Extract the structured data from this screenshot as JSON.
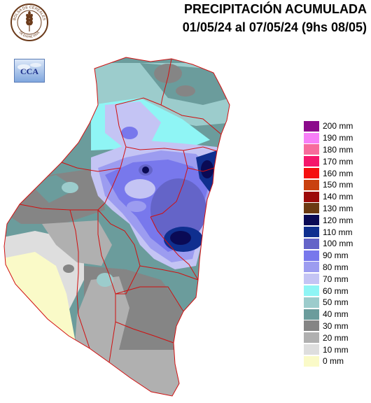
{
  "header": {
    "title_line1": "PRECIPITACIÓN ACUMULADA",
    "title_line2": "01/05/24 al 07/05/24 (9hs 08/05)"
  },
  "logos": {
    "seal_text_top": "BOLSA DE CEREALES",
    "seal_text_bottom": "DE ENTRE RIOS",
    "cca_text": "CCA"
  },
  "legend": {
    "items": [
      {
        "label": "200 mm",
        "color": "#8b0a8b"
      },
      {
        "label": "190 mm",
        "color": "#f77ff7"
      },
      {
        "label": "180 mm",
        "color": "#f76b9c"
      },
      {
        "label": "170 mm",
        "color": "#f5166b"
      },
      {
        "label": "160 mm",
        "color": "#f50f0f"
      },
      {
        "label": "150 mm",
        "color": "#c9410f"
      },
      {
        "label": "140 mm",
        "color": "#9c0a0a"
      },
      {
        "label": "130 mm",
        "color": "#6b3a12"
      },
      {
        "label": "120 mm",
        "color": "#0a0a55"
      },
      {
        "label": "110 mm",
        "color": "#0f2f8f"
      },
      {
        "label": "100 mm",
        "color": "#6464c8"
      },
      {
        "label": "90 mm",
        "color": "#7878ec"
      },
      {
        "label": "80 mm",
        "color": "#9c9cf0"
      },
      {
        "label": "70 mm",
        "color": "#c4c4f4"
      },
      {
        "label": "60 mm",
        "color": "#8ff5f5"
      },
      {
        "label": "50 mm",
        "color": "#9ccccc"
      },
      {
        "label": "40 mm",
        "color": "#6b9c9c"
      },
      {
        "label": "30 mm",
        "color": "#858585"
      },
      {
        "label": "20 mm",
        "color": "#b0b0b0"
      },
      {
        "label": "10 mm",
        "color": "#dedede"
      },
      {
        "label": "0 mm",
        "color": "#fafac8"
      }
    ]
  },
  "map": {
    "boundary_color": "#d01010"
  }
}
